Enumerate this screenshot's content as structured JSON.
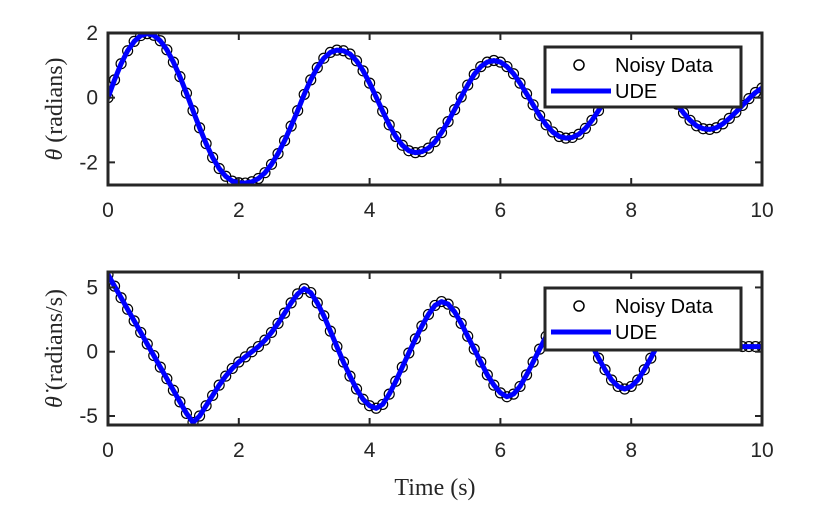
{
  "chart_data": [
    {
      "type": "scatter",
      "ylabel": "θ (radians)",
      "xlabel": "",
      "xlim": [
        0,
        10
      ],
      "ylim": [
        -2.7,
        2.0
      ],
      "xticks": [
        "0",
        "2",
        "4",
        "6",
        "8",
        "10"
      ],
      "yticks": [
        {
          "value": -2,
          "label": "-2"
        },
        {
          "value": 0,
          "label": "0"
        },
        {
          "value": 2,
          "label": "2"
        }
      ],
      "legend_position": "top-right",
      "grid": false,
      "series": [
        {
          "name": "Noisy Data",
          "style": "markers",
          "marker": "circle",
          "color": "#000000",
          "x": [
            0.0,
            0.1,
            0.2,
            0.3,
            0.4,
            0.5,
            0.6,
            0.7,
            0.8,
            0.9,
            1.0,
            1.1,
            1.2,
            1.3,
            1.4,
            1.5,
            1.6,
            1.7,
            1.8,
            1.9,
            2.0,
            2.1,
            2.2,
            2.3,
            2.4,
            2.5,
            2.6,
            2.7,
            2.8,
            2.9,
            3.0,
            3.1,
            3.2,
            3.3,
            3.4,
            3.5,
            3.6,
            3.7,
            3.8,
            3.9,
            4.0,
            4.1,
            4.2,
            4.3,
            4.4,
            4.5,
            4.6,
            4.7,
            4.8,
            4.9,
            5.0,
            5.1,
            5.2,
            5.3,
            5.4,
            5.5,
            5.6,
            5.7,
            5.8,
            5.9,
            6.0,
            6.1,
            6.2,
            6.3,
            6.4,
            6.5,
            6.6,
            6.7,
            6.8,
            6.9,
            7.0,
            7.1,
            7.2,
            7.3,
            7.4,
            7.5,
            7.6,
            7.7,
            7.8,
            7.9,
            8.0,
            8.1,
            8.2,
            8.3,
            8.4,
            8.5,
            8.6,
            8.7,
            8.8,
            8.9,
            9.0,
            9.1,
            9.2,
            9.3,
            9.4,
            9.5,
            9.6,
            9.7,
            9.8,
            9.9,
            10.0
          ],
          "y": [
            0.0,
            0.55,
            1.05,
            1.45,
            1.74,
            1.92,
            1.98,
            1.93,
            1.76,
            1.48,
            1.1,
            0.65,
            0.14,
            -0.4,
            -0.93,
            -1.42,
            -1.85,
            -2.19,
            -2.43,
            -2.58,
            -2.63,
            -2.64,
            -2.6,
            -2.5,
            -2.32,
            -2.06,
            -1.73,
            -1.33,
            -0.88,
            -0.4,
            0.1,
            0.55,
            0.93,
            1.22,
            1.4,
            1.47,
            1.45,
            1.35,
            1.14,
            0.83,
            0.45,
            0.02,
            -0.42,
            -0.84,
            -1.2,
            -1.47,
            -1.64,
            -1.7,
            -1.67,
            -1.56,
            -1.36,
            -1.08,
            -0.74,
            -0.37,
            0.02,
            0.39,
            0.72,
            0.96,
            1.1,
            1.15,
            1.1,
            0.96,
            0.74,
            0.45,
            0.12,
            -0.22,
            -0.55,
            -0.84,
            -1.06,
            -1.2,
            -1.25,
            -1.23,
            -1.13,
            -0.95,
            -0.7,
            -0.4,
            -0.08,
            0.24,
            0.53,
            0.76,
            0.9,
            0.96,
            0.94,
            0.84,
            0.65,
            0.4,
            0.1,
            -0.2,
            -0.47,
            -0.7,
            -0.87,
            -0.96,
            -0.98,
            -0.93,
            -0.81,
            -0.64,
            -0.45,
            -0.24,
            -0.03,
            0.16,
            0.3
          ]
        },
        {
          "name": "UDE",
          "style": "line",
          "color": "#0000ff",
          "x": [
            0.0,
            0.1,
            0.2,
            0.3,
            0.4,
            0.5,
            0.6,
            0.7,
            0.8,
            0.9,
            1.0,
            1.1,
            1.2,
            1.3,
            1.4,
            1.5,
            1.6,
            1.7,
            1.8,
            1.9,
            2.0,
            2.1,
            2.2,
            2.3,
            2.4,
            2.5,
            2.6,
            2.7,
            2.8,
            2.9,
            3.0,
            3.1,
            3.2,
            3.3,
            3.4,
            3.5,
            3.6,
            3.7,
            3.8,
            3.9,
            4.0,
            4.1,
            4.2,
            4.3,
            4.4,
            4.5,
            4.6,
            4.7,
            4.8,
            4.9,
            5.0,
            5.1,
            5.2,
            5.3,
            5.4,
            5.5,
            5.6,
            5.7,
            5.8,
            5.9,
            6.0,
            6.1,
            6.2,
            6.3,
            6.4,
            6.5,
            6.6,
            6.7,
            6.8,
            6.9,
            7.0,
            7.1,
            7.2,
            7.3,
            7.4,
            7.5,
            7.6,
            7.7,
            7.8,
            7.9,
            8.0,
            8.1,
            8.2,
            8.3,
            8.4,
            8.5,
            8.6,
            8.7,
            8.8,
            8.9,
            9.0,
            9.1,
            9.2,
            9.3,
            9.4,
            9.5,
            9.6,
            9.7,
            9.8,
            9.9,
            10.0
          ],
          "y": [
            0.0,
            0.55,
            1.05,
            1.45,
            1.74,
            1.92,
            1.98,
            1.93,
            1.76,
            1.48,
            1.1,
            0.65,
            0.14,
            -0.4,
            -0.93,
            -1.42,
            -1.85,
            -2.19,
            -2.43,
            -2.58,
            -2.63,
            -2.64,
            -2.6,
            -2.5,
            -2.32,
            -2.06,
            -1.73,
            -1.33,
            -0.88,
            -0.4,
            0.1,
            0.55,
            0.93,
            1.22,
            1.4,
            1.47,
            1.45,
            1.35,
            1.14,
            0.83,
            0.45,
            0.02,
            -0.42,
            -0.84,
            -1.2,
            -1.47,
            -1.64,
            -1.7,
            -1.67,
            -1.56,
            -1.36,
            -1.08,
            -0.74,
            -0.37,
            0.02,
            0.39,
            0.72,
            0.96,
            1.1,
            1.15,
            1.1,
            0.96,
            0.74,
            0.45,
            0.12,
            -0.22,
            -0.55,
            -0.84,
            -1.06,
            -1.2,
            -1.25,
            -1.23,
            -1.13,
            -0.95,
            -0.7,
            -0.4,
            -0.08,
            0.24,
            0.53,
            0.76,
            0.9,
            0.96,
            0.94,
            0.84,
            0.65,
            0.4,
            0.1,
            -0.2,
            -0.47,
            -0.7,
            -0.87,
            -0.96,
            -0.98,
            -0.93,
            -0.81,
            -0.64,
            -0.45,
            -0.24,
            -0.03,
            0.16,
            0.3
          ]
        }
      ]
    },
    {
      "type": "scatter",
      "ylabel": "θ̇ (radians/s)",
      "xlabel": "Time (s)",
      "xlim": [
        0,
        10
      ],
      "ylim": [
        -5.7,
        6.2
      ],
      "xticks": [
        "0",
        "2",
        "4",
        "6",
        "8",
        "10"
      ],
      "yticks": [
        {
          "value": -5,
          "label": "-5"
        },
        {
          "value": 0,
          "label": "0"
        },
        {
          "value": 5,
          "label": "5"
        }
      ],
      "legend_position": "top-right",
      "grid": false,
      "series": [
        {
          "name": "Noisy Data",
          "style": "markers",
          "marker": "circle",
          "color": "#000000",
          "x": [
            0.0,
            0.1,
            0.2,
            0.3,
            0.4,
            0.5,
            0.6,
            0.7,
            0.8,
            0.9,
            1.0,
            1.1,
            1.2,
            1.3,
            1.4,
            1.5,
            1.6,
            1.7,
            1.8,
            1.9,
            2.0,
            2.1,
            2.2,
            2.3,
            2.4,
            2.5,
            2.6,
            2.7,
            2.8,
            2.9,
            3.0,
            3.1,
            3.2,
            3.3,
            3.4,
            3.5,
            3.6,
            3.7,
            3.8,
            3.9,
            4.0,
            4.1,
            4.2,
            4.3,
            4.4,
            4.5,
            4.6,
            4.7,
            4.8,
            4.9,
            5.0,
            5.1,
            5.2,
            5.3,
            5.4,
            5.5,
            5.6,
            5.7,
            5.8,
            5.9,
            6.0,
            6.1,
            6.2,
            6.3,
            6.4,
            6.5,
            6.6,
            6.7,
            6.8,
            6.9,
            7.0,
            7.1,
            7.2,
            7.3,
            7.4,
            7.5,
            7.6,
            7.7,
            7.8,
            7.9,
            8.0,
            8.1,
            8.2,
            8.3,
            8.4,
            8.5,
            8.6,
            8.7,
            8.8,
            8.9,
            9.0,
            9.1,
            9.2,
            9.3,
            9.4,
            9.5,
            9.6,
            9.7,
            9.8,
            9.9,
            10.0
          ],
          "y": [
            6.0,
            5.1,
            4.2,
            3.3,
            2.4,
            1.5,
            0.6,
            -0.3,
            -1.2,
            -2.1,
            -3.0,
            -3.9,
            -4.8,
            -5.5,
            -5.0,
            -4.2,
            -3.4,
            -2.6,
            -1.9,
            -1.3,
            -0.8,
            -0.4,
            0.0,
            0.4,
            0.9,
            1.5,
            2.2,
            3.0,
            3.8,
            4.5,
            4.9,
            4.6,
            3.8,
            2.8,
            1.6,
            0.4,
            -0.8,
            -1.9,
            -2.9,
            -3.7,
            -4.2,
            -4.4,
            -4.1,
            -3.3,
            -2.3,
            -1.2,
            -0.1,
            1.0,
            2.0,
            2.9,
            3.6,
            3.9,
            3.7,
            3.1,
            2.2,
            1.2,
            0.2,
            -0.8,
            -1.8,
            -2.6,
            -3.2,
            -3.5,
            -3.3,
            -2.7,
            -1.8,
            -0.8,
            0.2,
            1.2,
            2.0,
            2.6,
            2.9,
            2.7,
            2.2,
            1.4,
            0.5,
            -0.5,
            -1.4,
            -2.2,
            -2.7,
            -2.9,
            -2.7,
            -2.2,
            -1.4,
            -0.5,
            0.5,
            1.3,
            2.0,
            2.5,
            2.7,
            2.6,
            2.3,
            1.9,
            1.5,
            1.1,
            0.8,
            0.6,
            0.5,
            0.4,
            0.4,
            0.4,
            0.4
          ]
        },
        {
          "name": "UDE",
          "style": "line",
          "color": "#0000ff",
          "x": [
            0.0,
            0.1,
            0.2,
            0.3,
            0.4,
            0.5,
            0.6,
            0.7,
            0.8,
            0.9,
            1.0,
            1.1,
            1.2,
            1.3,
            1.4,
            1.5,
            1.6,
            1.7,
            1.8,
            1.9,
            2.0,
            2.1,
            2.2,
            2.3,
            2.4,
            2.5,
            2.6,
            2.7,
            2.8,
            2.9,
            3.0,
            3.1,
            3.2,
            3.3,
            3.4,
            3.5,
            3.6,
            3.7,
            3.8,
            3.9,
            4.0,
            4.1,
            4.2,
            4.3,
            4.4,
            4.5,
            4.6,
            4.7,
            4.8,
            4.9,
            5.0,
            5.1,
            5.2,
            5.3,
            5.4,
            5.5,
            5.6,
            5.7,
            5.8,
            5.9,
            6.0,
            6.1,
            6.2,
            6.3,
            6.4,
            6.5,
            6.6,
            6.7,
            6.8,
            6.9,
            7.0,
            7.1,
            7.2,
            7.3,
            7.4,
            7.5,
            7.6,
            7.7,
            7.8,
            7.9,
            8.0,
            8.1,
            8.2,
            8.3,
            8.4,
            8.5,
            8.6,
            8.7,
            8.8,
            8.9,
            9.0,
            9.1,
            9.2,
            9.3,
            9.4,
            9.5,
            9.6,
            9.7,
            9.8,
            9.9,
            10.0
          ],
          "y": [
            6.0,
            5.1,
            4.2,
            3.3,
            2.4,
            1.5,
            0.6,
            -0.3,
            -1.2,
            -2.1,
            -3.0,
            -3.9,
            -4.8,
            -5.5,
            -5.0,
            -4.2,
            -3.4,
            -2.6,
            -1.9,
            -1.3,
            -0.8,
            -0.4,
            0.0,
            0.4,
            0.9,
            1.5,
            2.2,
            3.0,
            3.8,
            4.5,
            4.9,
            4.6,
            3.8,
            2.8,
            1.6,
            0.4,
            -0.8,
            -1.9,
            -2.9,
            -3.7,
            -4.2,
            -4.4,
            -4.1,
            -3.3,
            -2.3,
            -1.2,
            -0.1,
            1.0,
            2.0,
            2.9,
            3.6,
            3.9,
            3.7,
            3.1,
            2.2,
            1.2,
            0.2,
            -0.8,
            -1.8,
            -2.6,
            -3.2,
            -3.5,
            -3.3,
            -2.7,
            -1.8,
            -0.8,
            0.2,
            1.2,
            2.0,
            2.6,
            2.9,
            2.7,
            2.2,
            1.4,
            0.5,
            -0.5,
            -1.4,
            -2.2,
            -2.7,
            -2.9,
            -2.7,
            -2.2,
            -1.4,
            -0.5,
            0.5,
            1.3,
            2.0,
            2.5,
            2.7,
            2.6,
            2.3,
            1.9,
            1.5,
            1.1,
            0.8,
            0.6,
            0.5,
            0.4,
            0.4,
            0.4,
            0.4
          ]
        }
      ]
    }
  ]
}
